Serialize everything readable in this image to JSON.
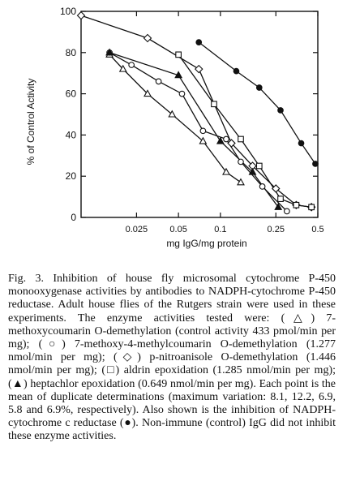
{
  "chart_data": {
    "type": "line",
    "xscale": "log",
    "xlabel": "mg IgG/mg protein",
    "ylabel": "% of Control Activity",
    "xlim": [
      0.01,
      0.5
    ],
    "ylim": [
      0,
      100
    ],
    "xticks": [
      0.025,
      0.05,
      0.1,
      0.25,
      0.5
    ],
    "xtick_labels": [
      "0.025",
      "0.05",
      "0.1",
      "0.25",
      "0.5"
    ],
    "yticks": [
      0,
      20,
      40,
      60,
      80,
      100
    ],
    "ytick_labels": [
      "0",
      "20",
      "40",
      "60",
      "80",
      "100"
    ],
    "grid": false,
    "series": [
      {
        "marker": "triangle-open",
        "x": [
          0.016,
          0.02,
          0.03,
          0.045,
          0.075,
          0.11,
          0.14
        ],
        "y": [
          79,
          72,
          60,
          50,
          37,
          22,
          17
        ]
      },
      {
        "marker": "circle-open",
        "x": [
          0.016,
          0.023,
          0.036,
          0.053,
          0.075,
          0.11,
          0.14,
          0.2,
          0.3
        ],
        "y": [
          80,
          74,
          66,
          60,
          42,
          38,
          27,
          15,
          3
        ]
      },
      {
        "marker": "diamond-open",
        "x": [
          0.01,
          0.03,
          0.07,
          0.12,
          0.17,
          0.25,
          0.35,
          0.45
        ],
        "y": [
          98,
          87,
          72,
          36,
          25,
          14,
          6,
          5
        ]
      },
      {
        "marker": "square-open",
        "x": [
          0.05,
          0.09,
          0.14,
          0.19,
          0.27,
          0.35,
          0.45
        ],
        "y": [
          79,
          55,
          38,
          25,
          9,
          6,
          5
        ]
      },
      {
        "marker": "triangle-filled",
        "x": [
          0.016,
          0.05,
          0.1,
          0.17,
          0.26
        ],
        "y": [
          80,
          69,
          37,
          22,
          5
        ]
      },
      {
        "marker": "circle-filled",
        "x": [
          0.07,
          0.13,
          0.19,
          0.27,
          0.38,
          0.48
        ],
        "y": [
          85,
          71,
          63,
          52,
          36,
          26
        ]
      }
    ]
  },
  "caption": {
    "fig_label": "Fig. 3.",
    "text": "Inhibition of house fly microsomal cytochrome P-450 monooxygenase activities by antibodies to NADPH-cytochrome P-450 reductase. Adult house flies of the Rutgers strain were used in these experiments. The enzyme activities tested were: (△) 7-methoxycoumarin O-demethylation (control activity 433 pmol/min per mg); (○) 7-methoxy-4-methylcoumarin O-demethylation (1.277 nmol/min per mg); (◇) p-nitroanisole O-demethylation (1.446 nmol/min per mg); (□) aldrin epoxidation (1.285 nmol/min per mg); (▲) heptachlor epoxidation (0.649 nmol/min per mg). Each point is the mean of duplicate determinations (maximum variation: 8.1, 12.2, 6.9, 5.8 and 6.9%, respectively). Also shown is the inhibition of NADPH-cytochrome c reductase (●). Non-immune (control) IgG did not inhibit these enzyme activities."
  }
}
